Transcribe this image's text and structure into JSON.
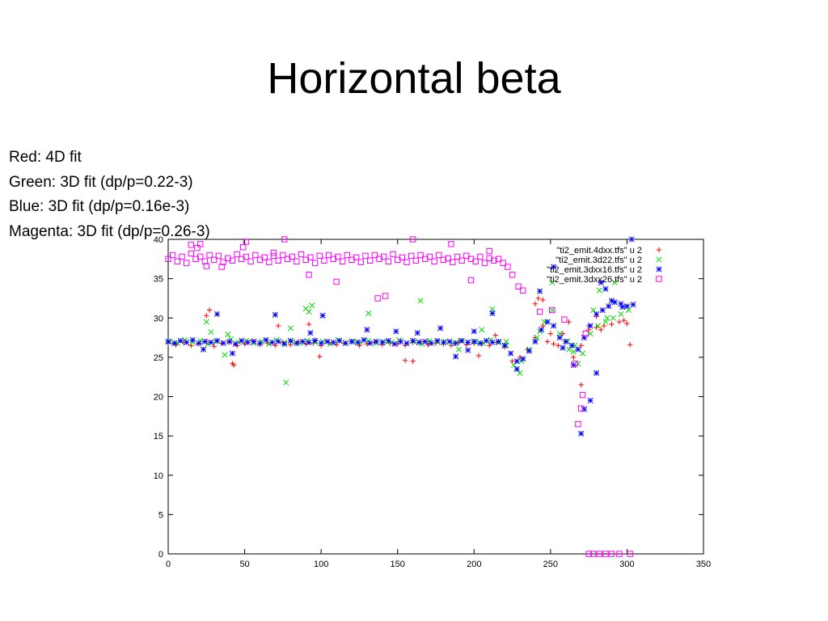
{
  "slide": {
    "title": "Horizontal beta",
    "notes": [
      "Red: 4D fit",
      "Green: 3D fit (dp/p=0.22-3)",
      "Blue: 3D fit (dp/p=0.16e-3)",
      "Magenta: 3D fit (dp/p=0.26-3)"
    ]
  },
  "chart_data": {
    "type": "scatter",
    "title": "",
    "xlabel": "",
    "ylabel": "",
    "xlim": [
      0,
      350
    ],
    "ylim": [
      0,
      40
    ],
    "xticks": [
      0,
      50,
      100,
      150,
      200,
      250,
      300,
      350
    ],
    "yticks": [
      0,
      5,
      10,
      15,
      20,
      25,
      30,
      35,
      40
    ],
    "grid": false,
    "legend_position": "top-right",
    "series": [
      {
        "name": "\"ti2_emit.4dxx.tfs\" u 2",
        "color": "#ff0000",
        "marker": "plus",
        "x": [
          0,
          5,
          10,
          15,
          20,
          25,
          30,
          35,
          40,
          45,
          50,
          55,
          60,
          65,
          70,
          75,
          80,
          85,
          90,
          95,
          100,
          105,
          110,
          115,
          120,
          125,
          130,
          135,
          140,
          145,
          150,
          155,
          160,
          165,
          170,
          175,
          180,
          185,
          190,
          195,
          200,
          205,
          210,
          215,
          220,
          225,
          230,
          235,
          240,
          245,
          250,
          255,
          260,
          265,
          270,
          275,
          280,
          285,
          290,
          295,
          300,
          25,
          27,
          42,
          43,
          72,
          92,
          96,
          99,
          155,
          160,
          170,
          203,
          214,
          240,
          242,
          245,
          248,
          252,
          258,
          262,
          270,
          275,
          280,
          283,
          298,
          302
        ],
        "y": [
          26.8,
          26.6,
          26.9,
          26.5,
          26.7,
          27.0,
          26.4,
          26.8,
          26.9,
          26.5,
          26.7,
          27.1,
          26.6,
          26.8,
          26.5,
          26.9,
          26.6,
          27.0,
          26.7,
          26.8,
          26.5,
          26.9,
          26.6,
          26.8,
          27.0,
          26.5,
          26.7,
          26.9,
          26.6,
          26.8,
          26.7,
          26.5,
          26.9,
          27.0,
          26.6,
          26.8,
          26.7,
          26.5,
          26.9,
          26.6,
          26.8,
          26.7,
          26.5,
          26.9,
          26.3,
          24.5,
          25.0,
          26.0,
          27.5,
          29.0,
          28.0,
          26.5,
          27.0,
          25.0,
          26.5,
          28.5,
          28.8,
          29.0,
          29.2,
          29.5,
          29.3,
          30.3,
          31.0,
          24.2,
          24.0,
          29.0,
          29.2,
          27.2,
          25.1,
          24.6,
          24.5,
          26.8,
          25.2,
          27.8,
          31.8,
          32.5,
          32.3,
          27.0,
          26.7,
          28.0,
          29.5,
          21.5,
          29.0,
          30.2,
          28.5,
          29.7,
          26.6
        ]
      },
      {
        "name": "\"ti2_emit.3d22.tfs\" u 2",
        "color": "#00dd00",
        "marker": "cross",
        "x": [
          1,
          6,
          11,
          16,
          21,
          26,
          31,
          36,
          41,
          46,
          51,
          56,
          61,
          66,
          71,
          76,
          81,
          86,
          91,
          96,
          101,
          106,
          111,
          116,
          121,
          126,
          131,
          136,
          141,
          146,
          151,
          156,
          161,
          166,
          171,
          176,
          181,
          186,
          191,
          196,
          201,
          206,
          211,
          216,
          221,
          226,
          231,
          236,
          241,
          246,
          251,
          256,
          261,
          266,
          271,
          276,
          281,
          286,
          291,
          296,
          301,
          25,
          28,
          37,
          39,
          77,
          80,
          90,
          92,
          94,
          131,
          165,
          190,
          205,
          212,
          221,
          230,
          243,
          251,
          262,
          265,
          268,
          272,
          278,
          282,
          287,
          292
        ],
        "y": [
          27.0,
          26.8,
          27.2,
          26.9,
          27.1,
          26.7,
          27.0,
          26.8,
          27.3,
          26.9,
          27.1,
          26.8,
          27.0,
          26.7,
          27.2,
          26.9,
          27.0,
          26.8,
          27.1,
          26.9,
          27.0,
          26.7,
          27.2,
          26.8,
          27.0,
          26.9,
          27.1,
          26.8,
          27.0,
          26.9,
          27.2,
          26.8,
          27.0,
          26.7,
          27.1,
          26.9,
          27.0,
          26.8,
          27.1,
          26.9,
          27.0,
          26.8,
          27.2,
          26.9,
          27.0,
          24.0,
          24.5,
          26.0,
          27.5,
          29.5,
          31.0,
          28.0,
          27.0,
          26.5,
          25.5,
          28.0,
          29.0,
          29.5,
          30.0,
          30.5,
          31.0,
          29.5,
          28.2,
          25.3,
          27.9,
          21.8,
          28.7,
          31.2,
          30.8,
          31.6,
          30.6,
          32.2,
          26.0,
          28.5,
          31.1,
          26.5,
          23.0,
          28.3,
          34.5,
          26.0,
          25.7,
          24.2,
          18.4,
          31.0,
          33.5,
          30.0,
          34.5
        ]
      },
      {
        "name": "\"ti2_emit.3dxx16.tfs\" u 2",
        "color": "#0000ff",
        "marker": "star",
        "x": [
          0,
          4,
          8,
          12,
          16,
          20,
          24,
          28,
          32,
          36,
          40,
          44,
          48,
          52,
          56,
          60,
          64,
          68,
          72,
          76,
          80,
          84,
          88,
          92,
          96,
          100,
          104,
          108,
          112,
          116,
          120,
          124,
          128,
          132,
          136,
          140,
          144,
          148,
          152,
          156,
          160,
          164,
          168,
          172,
          176,
          180,
          184,
          188,
          192,
          196,
          200,
          204,
          208,
          212,
          216,
          220,
          224,
          228,
          232,
          236,
          240,
          244,
          248,
          252,
          256,
          260,
          264,
          268,
          272,
          276,
          280,
          284,
          288,
          292,
          296,
          300,
          304,
          23,
          32,
          42,
          70,
          93,
          101,
          130,
          149,
          163,
          178,
          188,
          196,
          200,
          212,
          228,
          243,
          252,
          258,
          265,
          270,
          272,
          276,
          280,
          283,
          286,
          290,
          297,
          303
        ],
        "y": [
          27.0,
          26.8,
          27.1,
          26.9,
          27.2,
          26.8,
          27.0,
          26.9,
          27.1,
          26.8,
          27.0,
          26.7,
          27.1,
          26.9,
          27.0,
          26.8,
          27.2,
          26.9,
          27.0,
          26.7,
          27.1,
          26.8,
          27.0,
          26.9,
          27.1,
          26.8,
          27.0,
          26.9,
          27.1,
          26.8,
          27.0,
          26.9,
          27.2,
          26.8,
          27.0,
          26.9,
          27.1,
          26.7,
          27.0,
          26.8,
          27.1,
          26.9,
          27.0,
          26.8,
          27.1,
          26.9,
          27.0,
          26.8,
          27.1,
          26.9,
          27.0,
          26.8,
          27.1,
          26.9,
          27.0,
          26.5,
          25.5,
          24.5,
          24.8,
          25.8,
          27.0,
          28.5,
          29.5,
          29.0,
          27.5,
          27.0,
          26.5,
          26.0,
          27.5,
          29.0,
          30.5,
          31.0,
          31.5,
          32.0,
          31.8,
          31.5,
          31.7,
          26.0,
          30.5,
          25.5,
          30.4,
          28.1,
          30.3,
          28.5,
          28.3,
          28.1,
          28.7,
          25.1,
          25.9,
          28.3,
          30.6,
          23.5,
          33.4,
          36.5,
          26.2,
          24.0,
          15.3,
          18.4,
          19.5,
          23.0,
          34.5,
          33.7,
          32.2,
          31.4,
          40.0
        ]
      },
      {
        "name": "\"ti2_emit.3dxx26.tfs\" u 2",
        "color": "#ff00ff",
        "marker": "square",
        "x": [
          0,
          3,
          6,
          9,
          12,
          15,
          18,
          21,
          24,
          27,
          30,
          33,
          36,
          39,
          42,
          45,
          48,
          51,
          54,
          57,
          60,
          63,
          66,
          69,
          72,
          75,
          78,
          81,
          84,
          87,
          90,
          93,
          96,
          99,
          102,
          105,
          108,
          111,
          114,
          117,
          120,
          123,
          126,
          129,
          132,
          135,
          138,
          141,
          144,
          147,
          150,
          153,
          156,
          159,
          162,
          165,
          168,
          171,
          174,
          177,
          180,
          183,
          186,
          189,
          192,
          195,
          198,
          201,
          204,
          207,
          210,
          213,
          216,
          219,
          222,
          15,
          19,
          21,
          25,
          35,
          49,
          51,
          69,
          76,
          92,
          110,
          137,
          142,
          160,
          185,
          198,
          210,
          225,
          229,
          232,
          243,
          251,
          259,
          266,
          268,
          270,
          271,
          273,
          275,
          278,
          282,
          286,
          290,
          295,
          302
        ],
        "y": [
          37.5,
          38.0,
          37.2,
          37.8,
          37.0,
          38.2,
          37.5,
          37.8,
          37.2,
          38.0,
          37.4,
          37.9,
          37.1,
          37.6,
          37.3,
          38.1,
          37.5,
          37.8,
          37.2,
          38.0,
          37.4,
          37.7,
          37.1,
          37.9,
          37.3,
          38.0,
          37.5,
          37.8,
          37.2,
          38.1,
          37.4,
          37.7,
          37.0,
          37.9,
          37.3,
          38.0,
          37.5,
          37.8,
          37.2,
          38.0,
          37.4,
          37.7,
          37.1,
          37.9,
          37.3,
          38.0,
          37.5,
          37.8,
          37.2,
          38.1,
          37.4,
          37.7,
          37.1,
          37.9,
          37.3,
          38.0,
          37.5,
          37.8,
          37.2,
          38.0,
          37.4,
          37.6,
          37.1,
          37.8,
          37.3,
          37.9,
          37.5,
          37.2,
          37.8,
          37.0,
          37.6,
          37.3,
          37.5,
          37.0,
          36.5,
          39.3,
          38.9,
          39.4,
          36.6,
          36.5,
          39.0,
          39.7,
          38.3,
          40.0,
          35.5,
          34.6,
          32.5,
          32.8,
          40.0,
          39.4,
          34.8,
          38.5,
          35.5,
          34.0,
          33.5,
          30.8,
          31.0,
          29.8,
          24.2,
          16.5,
          18.5,
          20.2,
          28.0,
          0.0,
          0.0,
          0.0,
          0.0,
          0.0,
          0.0,
          0.0
        ]
      }
    ]
  }
}
